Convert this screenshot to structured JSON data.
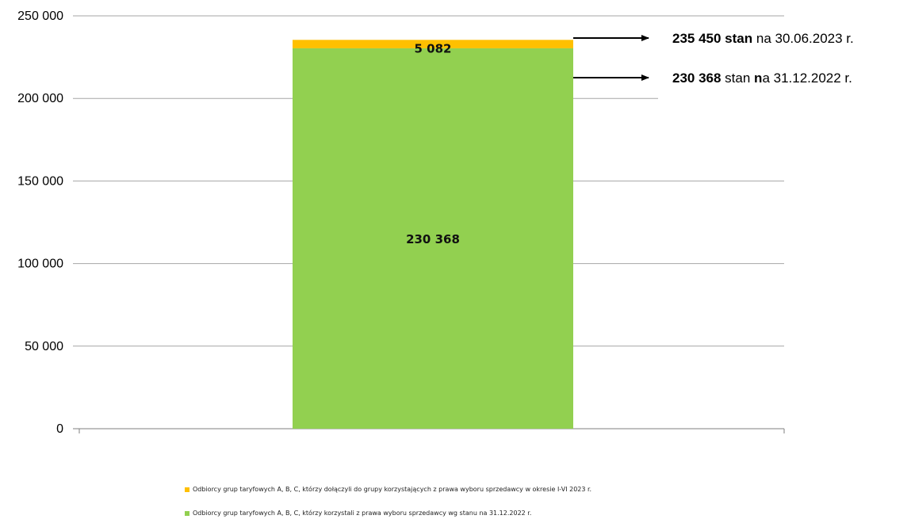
{
  "chart_data": {
    "type": "bar",
    "stacked": true,
    "categories": [
      ""
    ],
    "ylim": [
      0,
      250000
    ],
    "yticks": [
      0,
      50000,
      100000,
      150000,
      200000,
      250000
    ],
    "ytick_labels": [
      "0",
      "50 000",
      "100 000",
      "150 000",
      "200 000",
      "250 000"
    ],
    "grid": true,
    "legend_position": "bottom",
    "series": [
      {
        "name": "Odbiorcy grup taryfowych A, B, C, którzy korzystali z prawa wyboru sprzedawcy wg stanu na 31.12.2022 r.",
        "values": [
          230368
        ],
        "label": "230 368",
        "color": "#92d050"
      },
      {
        "name": "Odbiorcy grup taryfowych A, B, C, którzy dołączyli do grupy korzystających z  prawa wyboru sprzedawcy w okresie I-VI 2023 r.",
        "values": [
          5082
        ],
        "label": "5 082",
        "color": "#ffc000"
      }
    ],
    "annotations": [
      {
        "value": 235450,
        "bold": "235 450 stan",
        "rest": " na 30.06.2023 r."
      },
      {
        "value": 230368,
        "bold": "230 368",
        "mid": " stan ",
        "bold2": "n",
        "rest": "a 31.12.2022 r."
      }
    ]
  }
}
